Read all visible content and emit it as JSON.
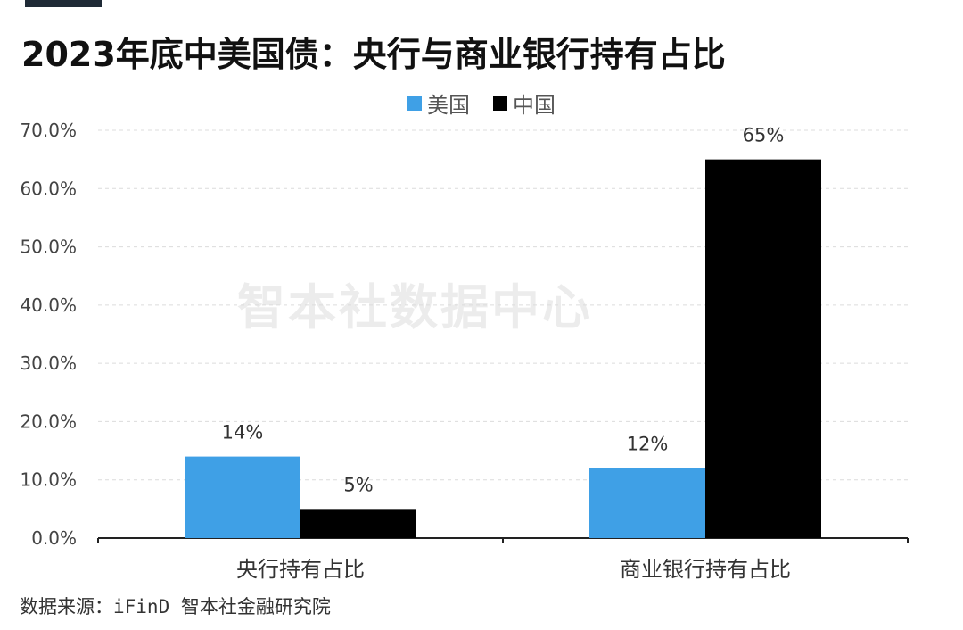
{
  "header": {
    "title": "2023年底中美国债：央行与商业银行持有占比"
  },
  "watermark": "智本社数据中心",
  "source": "数据来源：iFinD 智本社金融研究院",
  "chart_data": {
    "type": "bar",
    "title": "2023年底中美国债：央行与商业银行持有占比",
    "categories": [
      "央行持有占比",
      "商业银行持有占比"
    ],
    "series": [
      {
        "name": "美国",
        "values": [
          14,
          12
        ],
        "labels": [
          "14%",
          "12%"
        ],
        "color": "#3fa0e6"
      },
      {
        "name": "中国",
        "values": [
          5,
          65
        ],
        "labels": [
          "5%",
          "65%"
        ],
        "color": "#000000"
      }
    ],
    "yticks": [
      "0.0%",
      "10.0%",
      "20.0%",
      "30.0%",
      "40.0%",
      "50.0%",
      "60.0%",
      "70.0%"
    ],
    "ylim": [
      0,
      70
    ],
    "grid": true,
    "legend_position": "top-center"
  }
}
